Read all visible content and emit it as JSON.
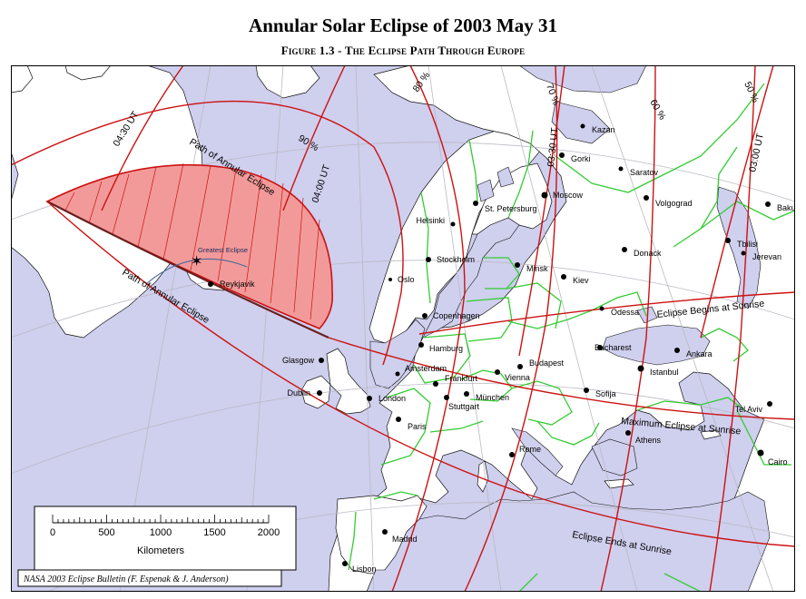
{
  "title": "Annular Solar Eclipse of 2003 May 31",
  "subtitle": "Figure 1.3 - The Eclipse Path Through Europe",
  "credit": "NASA 2003 Eclipse Bulletin (F. Espenak & J. Anderson)",
  "colors": {
    "water": "#cfcfee",
    "land": "#ffffff",
    "borders": "#33cc33",
    "coast": "#111111",
    "eclipse_lines": "#cc1111",
    "annular_zone": "#f29a9a",
    "graticule": "#b9b9c4"
  },
  "line_labels": {
    "ut_0430": "04:30 UT",
    "ut_0400": "04:00 UT",
    "ut_0330": "03:30 UT",
    "ut_0300": "03:00 UT",
    "pct_90": "90 %",
    "pct_80": "80 %",
    "pct_70": "70 %",
    "pct_60": "60 %",
    "pct_50": "50 %",
    "path_north": "Path of Annular Eclipse",
    "path_south": "Path of Annular Eclipse",
    "greatest_eclipse": "Greatest Eclipse",
    "begins_sunrise": "Eclipse Begins at Sunrise",
    "max_sunrise": "Maximum Eclipse at Sunrise",
    "ends_sunrise": "Eclipse Ends at Sunrise"
  },
  "cities": [
    {
      "id": "reykjavik",
      "name": "Reykjavik"
    },
    {
      "id": "glasgow",
      "name": "Glasgow"
    },
    {
      "id": "dublin",
      "name": "Dublin"
    },
    {
      "id": "london",
      "name": "London"
    },
    {
      "id": "paris",
      "name": "Paris"
    },
    {
      "id": "amsterdam",
      "name": "Amsterdam"
    },
    {
      "id": "hamburg",
      "name": "Hamburg"
    },
    {
      "id": "copenhagen",
      "name": "Copenhagen"
    },
    {
      "id": "oslo",
      "name": "Oslo"
    },
    {
      "id": "stockholm",
      "name": "Stockholm"
    },
    {
      "id": "helsinki",
      "name": "Helsinki"
    },
    {
      "id": "stpetersburg",
      "name": "St. Petersburg"
    },
    {
      "id": "moscow",
      "name": "Moscow"
    },
    {
      "id": "kazan",
      "name": "Kazan"
    },
    {
      "id": "gorki",
      "name": "Gorki"
    },
    {
      "id": "saratov",
      "name": "Saratov"
    },
    {
      "id": "volgograd",
      "name": "Volgograd"
    },
    {
      "id": "baku",
      "name": "Baku"
    },
    {
      "id": "tbilisi",
      "name": "Tbilisi"
    },
    {
      "id": "jerevan",
      "name": "Jerevan"
    },
    {
      "id": "donack",
      "name": "Donack"
    },
    {
      "id": "minsk",
      "name": "Minsk"
    },
    {
      "id": "kiev",
      "name": "Kiev"
    },
    {
      "id": "odessa",
      "name": "Odessa"
    },
    {
      "id": "bucharest",
      "name": "Bucharest"
    },
    {
      "id": "ankara",
      "name": "Ankara"
    },
    {
      "id": "istanbul",
      "name": "Istanbul"
    },
    {
      "id": "sofija",
      "name": "Sofija"
    },
    {
      "id": "budapest",
      "name": "Budapest"
    },
    {
      "id": "vienna",
      "name": "Vienna"
    },
    {
      "id": "frankfurt",
      "name": "Frankfurt"
    },
    {
      "id": "stuttgart",
      "name": "Stuttgart"
    },
    {
      "id": "munchen",
      "name": "München"
    },
    {
      "id": "athens",
      "name": "Athens"
    },
    {
      "id": "rome",
      "name": "Rome"
    },
    {
      "id": "telaviv",
      "name": "Tel Aviv"
    },
    {
      "id": "cairo",
      "name": "Cairo"
    },
    {
      "id": "madrid",
      "name": "Madrid"
    },
    {
      "id": "lisbon",
      "name": "Lisbon"
    }
  ],
  "scale_bar": {
    "ticks": [
      "0",
      "500",
      "1000",
      "1500",
      "2000"
    ],
    "unit": "Kilometers"
  }
}
